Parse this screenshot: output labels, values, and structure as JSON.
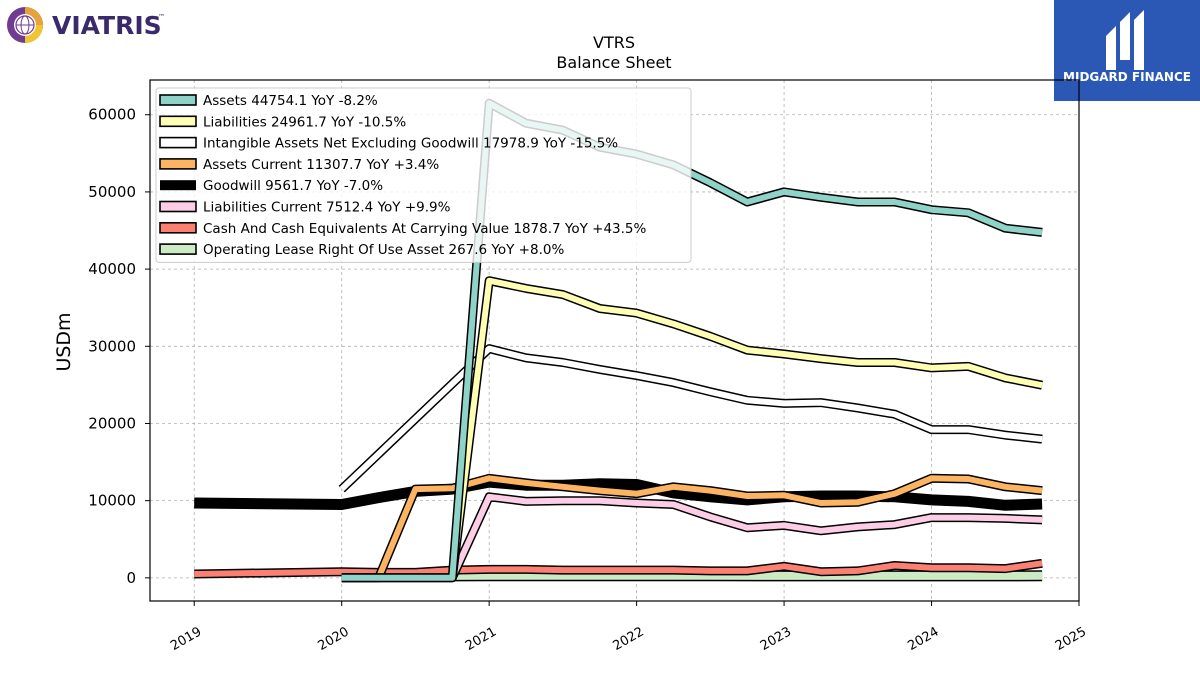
{
  "branding": {
    "company_logo_text": "VIATRIS",
    "company_logo_tm": "™",
    "sponsor_logo_text": "MIDGARD FINANCE",
    "sponsor_bg_color": "#2a58b4"
  },
  "chart_data": {
    "type": "line",
    "title": "VTRS",
    "subtitle": "Balance  Sheet",
    "xlabel": "",
    "ylabel": "USDm",
    "xlim": [
      2018.7,
      2025.0
    ],
    "ylim": [
      -3000,
      64500
    ],
    "x_ticks": [
      2019,
      2020,
      2021,
      2022,
      2023,
      2024,
      2025
    ],
    "y_ticks": [
      0,
      10000,
      20000,
      30000,
      40000,
      50000,
      60000
    ],
    "grid": true,
    "legend_position": "top-left",
    "series": [
      {
        "name": "Assets  44754.1 YoY -8.2%",
        "color": "#8dd3c7",
        "width": 6,
        "points": [
          [
            2020.0,
            0
          ],
          [
            2020.25,
            0
          ],
          [
            2020.5,
            0
          ],
          [
            2020.75,
            0
          ],
          [
            2021.0,
            61500
          ],
          [
            2021.25,
            58900
          ],
          [
            2021.5,
            58000
          ],
          [
            2021.75,
            55800
          ],
          [
            2022.0,
            54900
          ],
          [
            2022.25,
            53500
          ],
          [
            2022.5,
            51200
          ],
          [
            2022.75,
            48700
          ],
          [
            2023.0,
            50000
          ],
          [
            2023.25,
            49300
          ],
          [
            2023.5,
            48700
          ],
          [
            2023.75,
            48700
          ],
          [
            2024.0,
            47700
          ],
          [
            2024.25,
            47300
          ],
          [
            2024.5,
            45300
          ],
          [
            2024.75,
            44754.1
          ]
        ]
      },
      {
        "name": "Liabilities  24961.7 YoY -10.5%",
        "color": "#ffffb3",
        "width": 6,
        "points": [
          [
            2020.0,
            0
          ],
          [
            2020.25,
            0
          ],
          [
            2020.5,
            0
          ],
          [
            2020.75,
            0
          ],
          [
            2021.0,
            38500
          ],
          [
            2021.25,
            37500
          ],
          [
            2021.5,
            36700
          ],
          [
            2021.75,
            34900
          ],
          [
            2022.0,
            34300
          ],
          [
            2022.25,
            32900
          ],
          [
            2022.5,
            31300
          ],
          [
            2022.75,
            29500
          ],
          [
            2023.0,
            29000
          ],
          [
            2023.25,
            28400
          ],
          [
            2023.5,
            27900
          ],
          [
            2023.75,
            27900
          ],
          [
            2024.0,
            27200
          ],
          [
            2024.25,
            27400
          ],
          [
            2024.5,
            25900
          ],
          [
            2024.75,
            24961.7
          ]
        ]
      },
      {
        "name": "Intangible Assets Net Excluding Goodwill  17978.9 YoY -15.5%",
        "color": "#ffffff",
        "width": 6,
        "points": [
          [
            2020.0,
            11500
          ],
          [
            2021.0,
            29700
          ],
          [
            2021.25,
            28500
          ],
          [
            2021.5,
            27900
          ],
          [
            2021.75,
            27000
          ],
          [
            2022.0,
            26200
          ],
          [
            2022.25,
            25300
          ],
          [
            2022.5,
            24100
          ],
          [
            2022.75,
            23000
          ],
          [
            2023.0,
            22600
          ],
          [
            2023.25,
            22700
          ],
          [
            2023.5,
            22000
          ],
          [
            2023.75,
            21200
          ],
          [
            2024.0,
            19200
          ],
          [
            2024.25,
            19200
          ],
          [
            2024.5,
            18500
          ],
          [
            2024.75,
            17978.9
          ]
        ]
      },
      {
        "name": "Assets Current  11307.7 YoY +3.4%",
        "color": "#fdb462",
        "width": 6,
        "points": [
          [
            2020.0,
            0
          ],
          [
            2020.25,
            0
          ],
          [
            2020.5,
            11500
          ],
          [
            2020.75,
            11600
          ],
          [
            2021.0,
            12900
          ],
          [
            2021.25,
            12300
          ],
          [
            2021.5,
            11800
          ],
          [
            2021.75,
            11300
          ],
          [
            2022.0,
            10900
          ],
          [
            2022.25,
            11800
          ],
          [
            2022.5,
            11300
          ],
          [
            2022.75,
            10600
          ],
          [
            2023.0,
            10700
          ],
          [
            2023.25,
            9700
          ],
          [
            2023.5,
            9800
          ],
          [
            2023.75,
            10900
          ],
          [
            2024.0,
            12900
          ],
          [
            2024.25,
            12800
          ],
          [
            2024.5,
            11800
          ],
          [
            2024.75,
            11307.7
          ]
        ]
      },
      {
        "name": "Goodwill  9561.7 YoY -7.0%",
        "color": "#000000",
        "width": 9,
        "points": [
          [
            2019.0,
            9700
          ],
          [
            2020.0,
            9500
          ],
          [
            2020.25,
            10400
          ],
          [
            2020.5,
            11200
          ],
          [
            2020.75,
            11500
          ],
          [
            2021.0,
            12400
          ],
          [
            2021.25,
            12000
          ],
          [
            2021.5,
            12000
          ],
          [
            2021.75,
            12200
          ],
          [
            2022.0,
            12100
          ],
          [
            2022.25,
            11000
          ],
          [
            2022.5,
            10500
          ],
          [
            2022.75,
            10100
          ],
          [
            2023.0,
            10500
          ],
          [
            2023.25,
            10600
          ],
          [
            2023.5,
            10600
          ],
          [
            2023.75,
            10500
          ],
          [
            2024.0,
            10100
          ],
          [
            2024.25,
            9900
          ],
          [
            2024.5,
            9400
          ],
          [
            2024.75,
            9561.7
          ]
        ]
      },
      {
        "name": "Liabilities Current  7512.4 YoY +9.9%",
        "color": "#fccde5",
        "width": 6,
        "points": [
          [
            2020.75,
            0
          ],
          [
            2021.0,
            10500
          ],
          [
            2021.25,
            9900
          ],
          [
            2021.5,
            10000
          ],
          [
            2021.75,
            10000
          ],
          [
            2022.0,
            9700
          ],
          [
            2022.25,
            9500
          ],
          [
            2022.5,
            7900
          ],
          [
            2022.75,
            6500
          ],
          [
            2023.0,
            6800
          ],
          [
            2023.25,
            6100
          ],
          [
            2023.5,
            6600
          ],
          [
            2023.75,
            6900
          ],
          [
            2024.0,
            7800
          ],
          [
            2024.25,
            7800
          ],
          [
            2024.5,
            7700
          ],
          [
            2024.75,
            7512.4
          ]
        ]
      },
      {
        "name": "Cash And Cash Equivalents At Carrying Value  1878.7 YoY +43.5%",
        "color": "#fb8072",
        "width": 6,
        "points": [
          [
            2019.0,
            500
          ],
          [
            2020.0,
            800
          ],
          [
            2020.25,
            700
          ],
          [
            2020.5,
            700
          ],
          [
            2020.75,
            1000
          ],
          [
            2021.0,
            1100
          ],
          [
            2021.25,
            1100
          ],
          [
            2021.5,
            1000
          ],
          [
            2021.75,
            1000
          ],
          [
            2022.0,
            1000
          ],
          [
            2022.25,
            1000
          ],
          [
            2022.5,
            900
          ],
          [
            2022.75,
            900
          ],
          [
            2023.0,
            1500
          ],
          [
            2023.25,
            800
          ],
          [
            2023.5,
            900
          ],
          [
            2023.75,
            1600
          ],
          [
            2024.0,
            1300
          ],
          [
            2024.25,
            1300
          ],
          [
            2024.5,
            1200
          ],
          [
            2024.75,
            1878.7
          ]
        ]
      },
      {
        "name": "Operating Lease Right Of Use Asset  267.6 YoY +8.0%",
        "color": "#ccebc5",
        "width": 8,
        "points": [
          [
            2020.0,
            250
          ],
          [
            2020.25,
            250
          ],
          [
            2020.5,
            250
          ],
          [
            2020.75,
            250
          ],
          [
            2021.0,
            270
          ],
          [
            2021.5,
            270
          ],
          [
            2022.0,
            270
          ],
          [
            2022.5,
            260
          ],
          [
            2023.0,
            250
          ],
          [
            2023.5,
            250
          ],
          [
            2024.0,
            248
          ],
          [
            2024.5,
            250
          ],
          [
            2024.75,
            267.6
          ]
        ]
      }
    ]
  }
}
